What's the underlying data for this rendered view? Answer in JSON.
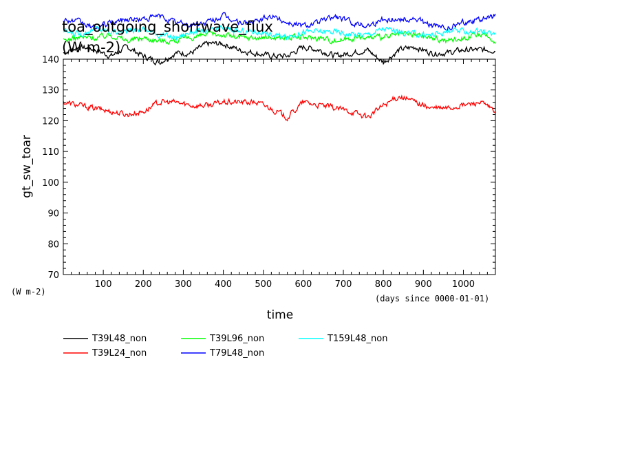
{
  "chart_data": {
    "type": "line",
    "title": "toa_outgoing_shortwave_flux",
    "title_units": "(W m-2)",
    "ylabel": "gt_sw_toar",
    "yunits": "(W m-2)",
    "xlabel": "time",
    "xunits": "(days since 0000-01-01)",
    "xlim": [
      0,
      1080
    ],
    "ylim": [
      70,
      140
    ],
    "xticks": [
      100,
      200,
      300,
      400,
      500,
      600,
      700,
      800,
      900,
      1000
    ],
    "yticks": [
      70,
      80,
      90,
      100,
      110,
      120,
      130,
      140
    ],
    "grid": false,
    "legend_position": "bottom-left",
    "series": [
      {
        "name": "T39L48_non",
        "color": "#000000",
        "x": [
          0,
          40,
          80,
          120,
          160,
          200,
          240,
          280,
          320,
          360,
          400,
          440,
          480,
          520,
          560,
          600,
          640,
          680,
          720,
          760,
          800,
          840,
          880,
          920,
          960,
          1000,
          1040,
          1080
        ],
        "values": [
          142,
          144,
          143,
          141,
          144,
          141,
          139,
          142,
          142,
          145,
          145,
          143,
          142,
          141,
          141,
          144,
          143,
          141,
          142,
          143,
          139,
          143,
          144,
          142,
          142,
          143,
          143,
          143
        ]
      },
      {
        "name": "T39L24_non",
        "color": "#ff0000",
        "x": [
          0,
          40,
          80,
          120,
          160,
          200,
          240,
          280,
          320,
          360,
          400,
          440,
          480,
          520,
          560,
          600,
          640,
          680,
          720,
          760,
          800,
          840,
          880,
          920,
          960,
          1000,
          1040,
          1080
        ],
        "values": [
          126,
          125,
          124,
          123,
          122,
          123,
          126,
          126,
          125,
          125,
          126,
          126,
          126,
          124,
          121,
          126,
          125,
          124,
          123,
          121,
          125,
          128,
          126,
          124,
          124,
          125,
          126,
          123
        ]
      },
      {
        "name": "T39L96_non",
        "color": "#00ff00",
        "x": [
          0,
          40,
          80,
          120,
          160,
          200,
          240,
          280,
          320,
          360,
          400,
          440,
          480,
          520,
          560,
          600,
          640,
          680,
          720,
          760,
          800,
          840,
          880,
          920,
          960,
          1000,
          1040,
          1080
        ],
        "values": [
          146,
          147,
          147,
          148,
          146,
          147,
          146,
          146,
          147,
          148,
          148,
          147,
          147,
          147,
          147,
          147,
          147,
          146,
          147,
          147,
          147,
          148,
          148,
          147,
          146,
          147,
          148,
          146
        ]
      },
      {
        "name": "T79L48_non",
        "color": "#0000ff",
        "x": [
          0,
          40,
          80,
          120,
          160,
          200,
          240,
          280,
          320,
          360,
          400,
          440,
          480,
          520,
          560,
          600,
          640,
          680,
          720,
          760,
          800,
          840,
          880,
          920,
          960,
          1000,
          1040,
          1080
        ],
        "values": [
          153,
          152,
          150,
          152,
          153,
          153,
          154,
          152,
          151,
          152,
          154,
          152,
          152,
          154,
          152,
          151,
          152,
          154,
          152,
          151,
          153,
          153,
          153,
          151,
          150,
          152,
          153,
          154
        ]
      },
      {
        "name": "T159L48_non",
        "color": "#00ffff",
        "x": [
          0,
          40,
          80,
          120,
          160,
          200,
          240,
          280,
          320,
          360,
          400,
          440,
          480,
          520,
          560,
          600,
          640,
          680,
          720,
          760,
          800,
          840,
          880,
          920,
          960,
          1000,
          1040,
          1080
        ],
        "values": [
          149,
          148,
          150,
          149,
          149,
          150,
          148,
          147,
          149,
          149,
          150,
          149,
          149,
          148,
          147,
          149,
          149,
          149,
          148,
          148,
          150,
          149,
          148,
          148,
          149,
          149,
          149,
          148
        ]
      }
    ]
  }
}
